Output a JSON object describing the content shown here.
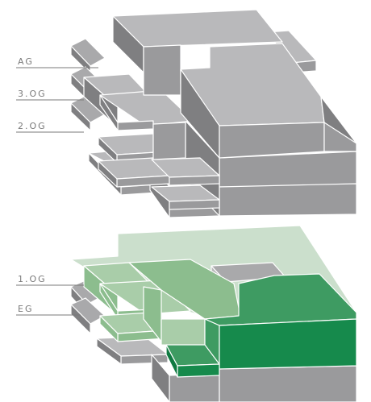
{
  "floors": {
    "ag": {
      "label": "AG"
    },
    "og3": {
      "label": "3.OG"
    },
    "og2": {
      "label": "2.OG"
    },
    "og1": {
      "label": "1.OG"
    },
    "eg": {
      "label": "EG"
    }
  },
  "colors": {
    "grey_top": "#b9b9bb",
    "grey_light": "#a9a9ab",
    "grey_front": "#9a9a9c",
    "grey_side": "#7f7f81",
    "grey_dark": "#6e6e70",
    "green_pale": "#cbdfcc",
    "green_light": "#a9cda9",
    "green_mid": "#8cbd8e",
    "green_strong": "#3e9b62",
    "green_deep": "#168a4c",
    "green_dark": "#0f7a41"
  }
}
